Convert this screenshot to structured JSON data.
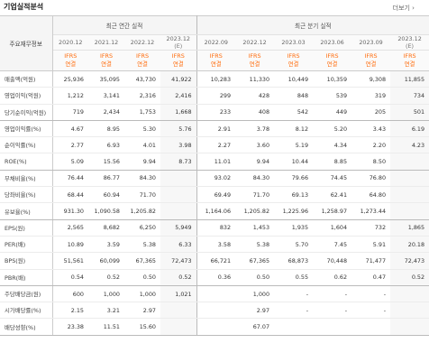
{
  "header": {
    "title": "기업실적분석",
    "more": "더보기 ›"
  },
  "table": {
    "label_header": "주요재무정보",
    "annual_group": "최근 연간 실적",
    "quarter_group": "최근 분기 실적",
    "periods": [
      "2020.12",
      "2021.12",
      "2022.12",
      "2023.12",
      "2022.09",
      "2022.12",
      "2023.03",
      "2023.06",
      "2023.09",
      "2023.12"
    ],
    "estimate_mark": "(E)",
    "standard_line1": "IFRS",
    "standard_line2": "연결",
    "rows": [
      {
        "label": "매출액(억원)",
        "values": [
          "25,936",
          "35,095",
          "43,730",
          "41,922",
          "10,283",
          "11,330",
          "10,449",
          "10,359",
          "9,308",
          "11,855"
        ]
      },
      {
        "label": "영업이익(억원)",
        "values": [
          "1,212",
          "3,141",
          "2,316",
          "2,416",
          "299",
          "428",
          "848",
          "539",
          "319",
          "734"
        ]
      },
      {
        "label": "당기순이익(억원)",
        "values": [
          "719",
          "2,434",
          "1,753",
          "1,668",
          "233",
          "408",
          "542",
          "449",
          "205",
          "501"
        ]
      },
      {
        "label": "영업이익률(%)",
        "values": [
          "4.67",
          "8.95",
          "5.30",
          "5.76",
          "2.91",
          "3.78",
          "8.12",
          "5.20",
          "3.43",
          "6.19"
        ]
      },
      {
        "label": "순이익률(%)",
        "values": [
          "2.77",
          "6.93",
          "4.01",
          "3.98",
          "2.27",
          "3.60",
          "5.19",
          "4.34",
          "2.20",
          "4.23"
        ]
      },
      {
        "label": "ROE(%)",
        "values": [
          "5.09",
          "15.56",
          "9.94",
          "8.73",
          "11.01",
          "9.94",
          "10.44",
          "8.85",
          "8.50",
          ""
        ]
      },
      {
        "label": "부채비율(%)",
        "values": [
          "76.44",
          "86.77",
          "84.30",
          "",
          "93.02",
          "84.30",
          "79.66",
          "74.45",
          "76.80",
          ""
        ]
      },
      {
        "label": "당좌비율(%)",
        "values": [
          "68.44",
          "60.94",
          "71.70",
          "",
          "69.49",
          "71.70",
          "69.13",
          "62.41",
          "64.80",
          ""
        ]
      },
      {
        "label": "유보율(%)",
        "values": [
          "931.30",
          "1,090.58",
          "1,205.82",
          "",
          "1,164.06",
          "1,205.82",
          "1,225.96",
          "1,258.97",
          "1,273.44",
          ""
        ]
      },
      {
        "label": "EPS(원)",
        "values": [
          "2,565",
          "8,682",
          "6,250",
          "5,949",
          "832",
          "1,453",
          "1,935",
          "1,604",
          "732",
          "1,865"
        ]
      },
      {
        "label": "PER(배)",
        "values": [
          "10.89",
          "3.59",
          "5.38",
          "6.33",
          "3.58",
          "5.38",
          "5.70",
          "7.45",
          "5.91",
          "20.18"
        ]
      },
      {
        "label": "BPS(원)",
        "values": [
          "51,561",
          "60,099",
          "67,365",
          "72,473",
          "66,721",
          "67,365",
          "68,873",
          "70,448",
          "71,477",
          "72,473"
        ]
      },
      {
        "label": "PBR(배)",
        "values": [
          "0.54",
          "0.52",
          "0.50",
          "0.52",
          "0.36",
          "0.50",
          "0.55",
          "0.62",
          "0.47",
          "0.52"
        ]
      },
      {
        "label": "주당배당금(원)",
        "values": [
          "600",
          "1,000",
          "1,000",
          "1,021",
          "",
          "1,000",
          "-",
          "-",
          "-",
          ""
        ]
      },
      {
        "label": "시가배당률(%)",
        "values": [
          "2.15",
          "3.21",
          "2.97",
          "",
          "",
          "2.97",
          "-",
          "-",
          "-",
          ""
        ]
      },
      {
        "label": "배당성향(%)",
        "values": [
          "23.38",
          "11.51",
          "15.60",
          "",
          "",
          "67.07",
          "",
          "",
          "",
          ""
        ]
      }
    ]
  }
}
